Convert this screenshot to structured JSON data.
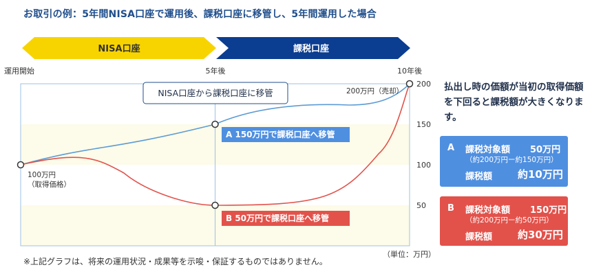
{
  "title": "お取引の例：5年間NISA口座で運用後、課税口座に移管し、5年間運用した場合",
  "periods": {
    "nisa": "NISA口座",
    "taxable": "課税口座"
  },
  "x_labels": {
    "start": "運用開始",
    "mid": "5年後",
    "end": "10年後"
  },
  "transfer_label": "NISA口座から課税口座に移管",
  "points": {
    "start": "100万円\n（取得価格）",
    "end": "200万円（売却）",
    "A": "A 150万円で課税口座へ移管",
    "B": "B 50万円で課税口座へ移管"
  },
  "unit": "（単位：万円）",
  "side_text": "払出し時の価額が当初の取得価額を下回ると課税額が大きくなります。",
  "box_a": {
    "letter": "A",
    "label1": "課税対象額",
    "value1": "50万円",
    "sub": "（約200万円ー約150万円）",
    "label2": "課税額",
    "value2": "約10万円"
  },
  "box_b": {
    "letter": "B",
    "label1": "課税対象額",
    "value1": "150万円",
    "sub": "（約200万円ー約50万円）",
    "label2": "課税額",
    "value2": "約30万円"
  },
  "note": "※上記グラフは、将来の運用状況・成果等を示唆・保証するものではありません。",
  "colors": {
    "blue_line": "#5b9bd5",
    "red_line": "#e2524b",
    "nisa_arrow": "#f7d400",
    "taxable_arrow": "#0b3d91",
    "band": "#fdfbe9"
  },
  "chart_data": {
    "type": "line",
    "x": [
      0,
      5,
      10
    ],
    "x_tick_labels": [
      "運用開始",
      "5年後",
      "10年後"
    ],
    "ylim": [
      0,
      200
    ],
    "y_ticks": [
      50,
      100,
      150,
      200
    ],
    "ylabel": "（単位：万円）",
    "series": [
      {
        "name": "A",
        "points": [
          [
            0,
            100
          ],
          [
            5,
            150
          ],
          [
            10,
            200
          ]
        ]
      },
      {
        "name": "B",
        "points": [
          [
            0,
            100
          ],
          [
            5,
            50
          ],
          [
            10,
            200
          ]
        ]
      }
    ]
  }
}
